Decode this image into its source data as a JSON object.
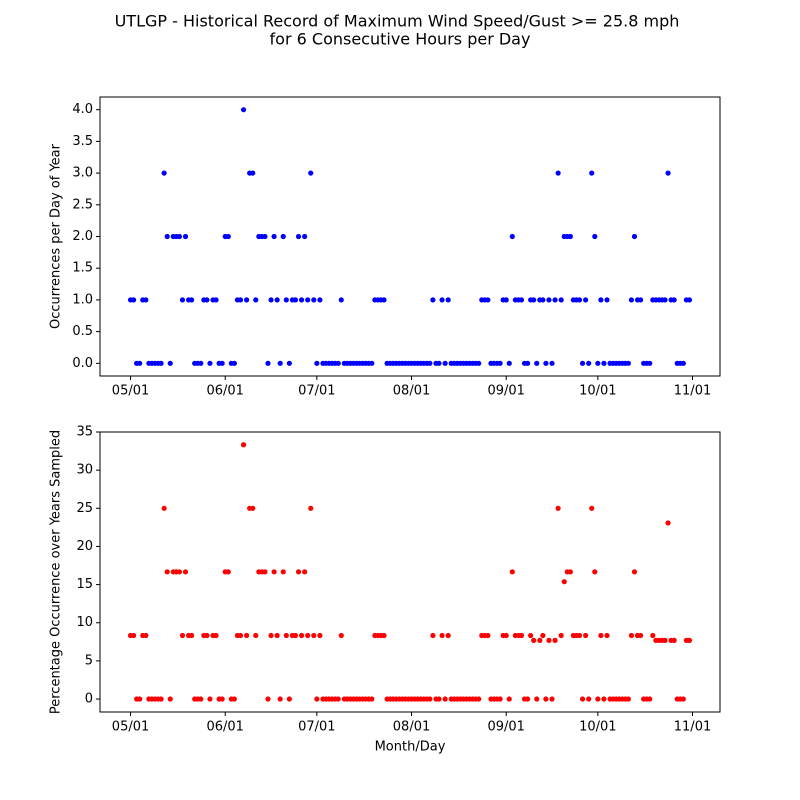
{
  "title": [
    "UTLGP - Historical Record of Maximum Wind Speed/Gust >= 25.8 mph",
    "for 6 Consecutive Hours per Day"
  ],
  "chart_data": [
    {
      "type": "scatter",
      "ylabel": "Occurrences per Day of Year",
      "x": [
        "05/01",
        "05/02",
        "05/03",
        "05/04",
        "05/05",
        "05/06",
        "05/07",
        "05/08",
        "05/09",
        "05/10",
        "05/11",
        "05/12",
        "05/13",
        "05/14",
        "05/15",
        "05/16",
        "05/17",
        "05/18",
        "05/19",
        "05/20",
        "05/21",
        "05/22",
        "05/23",
        "05/24",
        "05/25",
        "05/26",
        "05/27",
        "05/28",
        "05/29",
        "05/30",
        "05/31",
        "06/01",
        "06/02",
        "06/03",
        "06/04",
        "06/05",
        "06/06",
        "06/07",
        "06/08",
        "06/09",
        "06/10",
        "06/11",
        "06/12",
        "06/13",
        "06/14",
        "06/15",
        "06/16",
        "06/17",
        "06/18",
        "06/19",
        "06/20",
        "06/21",
        "06/22",
        "06/23",
        "06/24",
        "06/25",
        "06/26",
        "06/27",
        "06/28",
        "06/29",
        "06/30",
        "07/01",
        "07/02",
        "07/03",
        "07/04",
        "07/05",
        "07/06",
        "07/07",
        "07/08",
        "07/09",
        "07/10",
        "07/11",
        "07/12",
        "07/13",
        "07/14",
        "07/15",
        "07/16",
        "07/17",
        "07/18",
        "07/19",
        "07/20",
        "07/21",
        "07/22",
        "07/23",
        "07/24",
        "07/25",
        "07/26",
        "07/27",
        "07/28",
        "07/29",
        "07/30",
        "07/31",
        "08/01",
        "08/02",
        "08/03",
        "08/04",
        "08/05",
        "08/06",
        "08/07",
        "08/08",
        "08/09",
        "08/10",
        "08/11",
        "08/12",
        "08/13",
        "08/14",
        "08/15",
        "08/16",
        "08/17",
        "08/18",
        "08/19",
        "08/20",
        "08/21",
        "08/22",
        "08/23",
        "08/24",
        "08/25",
        "08/26",
        "08/27",
        "08/28",
        "08/29",
        "08/30",
        "08/31",
        "09/01",
        "09/02",
        "09/03",
        "09/04",
        "09/05",
        "09/06",
        "09/07",
        "09/08",
        "09/09",
        "09/10",
        "09/11",
        "09/12",
        "09/13",
        "09/14",
        "09/15",
        "09/16",
        "09/17",
        "09/18",
        "09/19",
        "09/20",
        "09/21",
        "09/22",
        "09/23",
        "09/24",
        "09/25",
        "09/26",
        "09/27",
        "09/28",
        "09/29",
        "09/30",
        "10/01",
        "10/02",
        "10/03",
        "10/04",
        "10/05",
        "10/06",
        "10/07",
        "10/08",
        "10/09",
        "10/10",
        "10/11",
        "10/12",
        "10/13",
        "10/14",
        "10/15",
        "10/16",
        "10/17",
        "10/18",
        "10/19",
        "10/20",
        "10/21",
        "10/22",
        "10/23",
        "10/24",
        "10/25",
        "10/26",
        "10/27",
        "10/28",
        "10/29",
        "10/30",
        "10/31"
      ],
      "series": [
        {
          "color": "#0000ff",
          "values": [
            1,
            1,
            0,
            0,
            1,
            1,
            0,
            0,
            0,
            0,
            0,
            3,
            2,
            0,
            2,
            2,
            2,
            1,
            2,
            1,
            1,
            0,
            0,
            0,
            1,
            1,
            0,
            1,
            1,
            0,
            0,
            2,
            2,
            0,
            0,
            1,
            1,
            4,
            1,
            3,
            3,
            1,
            2,
            2,
            2,
            0,
            1,
            2,
            1,
            0,
            2,
            1,
            0,
            1,
            1,
            2,
            1,
            2,
            1,
            3,
            1,
            0,
            1,
            0,
            0,
            0,
            0,
            0,
            0,
            1,
            0,
            0,
            0,
            0,
            0,
            0,
            0,
            0,
            0,
            0,
            1,
            1,
            1,
            1,
            0,
            0,
            0,
            0,
            0,
            0,
            0,
            0,
            0,
            0,
            0,
            0,
            0,
            0,
            0,
            1,
            0,
            0,
            1,
            0,
            1,
            0,
            0,
            0,
            0,
            0,
            0,
            0,
            0,
            0,
            0,
            1,
            1,
            1,
            0,
            0,
            0,
            0,
            1,
            1,
            0,
            2,
            1,
            1,
            1,
            0,
            0,
            1,
            1,
            0,
            1,
            1,
            0,
            1,
            0,
            1,
            3,
            1,
            2,
            2,
            2,
            1,
            1,
            1,
            0,
            1,
            0,
            3,
            2,
            0,
            1,
            0,
            1,
            0,
            0,
            0,
            0,
            0,
            0,
            0,
            1,
            2,
            1,
            1,
            0,
            0,
            0,
            1,
            1,
            1,
            1,
            1,
            3,
            1,
            1,
            0,
            0,
            0,
            1,
            1
          ]
        }
      ],
      "xlim": [
        "04/21",
        "11/10"
      ],
      "xticks": [
        "05/01",
        "06/01",
        "07/01",
        "08/01",
        "09/01",
        "10/01",
        "11/01"
      ],
      "ylim": [
        -0.2,
        4.2
      ],
      "yticks": [
        {
          "value": 0,
          "label": "0.0"
        },
        {
          "value": 0.5,
          "label": "0.5"
        },
        {
          "value": 1,
          "label": "1.0"
        },
        {
          "value": 1.5,
          "label": "1.5"
        },
        {
          "value": 2,
          "label": "2.0"
        },
        {
          "value": 2.5,
          "label": "2.5"
        },
        {
          "value": 3,
          "label": "3.0"
        },
        {
          "value": 3.5,
          "label": "3.5"
        },
        {
          "value": 4,
          "label": "4.0"
        }
      ]
    },
    {
      "type": "scatter",
      "xlabel": "Month/Day",
      "ylabel": "Percentage Occurrence over Years Sampled",
      "x": [
        "05/01",
        "05/02",
        "05/03",
        "05/04",
        "05/05",
        "05/06",
        "05/07",
        "05/08",
        "05/09",
        "05/10",
        "05/11",
        "05/12",
        "05/13",
        "05/14",
        "05/15",
        "05/16",
        "05/17",
        "05/18",
        "05/19",
        "05/20",
        "05/21",
        "05/22",
        "05/23",
        "05/24",
        "05/25",
        "05/26",
        "05/27",
        "05/28",
        "05/29",
        "05/30",
        "05/31",
        "06/01",
        "06/02",
        "06/03",
        "06/04",
        "06/05",
        "06/06",
        "06/07",
        "06/08",
        "06/09",
        "06/10",
        "06/11",
        "06/12",
        "06/13",
        "06/14",
        "06/15",
        "06/16",
        "06/17",
        "06/18",
        "06/19",
        "06/20",
        "06/21",
        "06/22",
        "06/23",
        "06/24",
        "06/25",
        "06/26",
        "06/27",
        "06/28",
        "06/29",
        "06/30",
        "07/01",
        "07/02",
        "07/03",
        "07/04",
        "07/05",
        "07/06",
        "07/07",
        "07/08",
        "07/09",
        "07/10",
        "07/11",
        "07/12",
        "07/13",
        "07/14",
        "07/15",
        "07/16",
        "07/17",
        "07/18",
        "07/19",
        "07/20",
        "07/21",
        "07/22",
        "07/23",
        "07/24",
        "07/25",
        "07/26",
        "07/27",
        "07/28",
        "07/29",
        "07/30",
        "07/31",
        "08/01",
        "08/02",
        "08/03",
        "08/04",
        "08/05",
        "08/06",
        "08/07",
        "08/08",
        "08/09",
        "08/10",
        "08/11",
        "08/12",
        "08/13",
        "08/14",
        "08/15",
        "08/16",
        "08/17",
        "08/18",
        "08/19",
        "08/20",
        "08/21",
        "08/22",
        "08/23",
        "08/24",
        "08/25",
        "08/26",
        "08/27",
        "08/28",
        "08/29",
        "08/30",
        "08/31",
        "09/01",
        "09/02",
        "09/03",
        "09/04",
        "09/05",
        "09/06",
        "09/07",
        "09/08",
        "09/09",
        "09/10",
        "09/11",
        "09/12",
        "09/13",
        "09/14",
        "09/15",
        "09/16",
        "09/17",
        "09/18",
        "09/19",
        "09/20",
        "09/21",
        "09/22",
        "09/23",
        "09/24",
        "09/25",
        "09/26",
        "09/27",
        "09/28",
        "09/29",
        "09/30",
        "10/01",
        "10/02",
        "10/03",
        "10/04",
        "10/05",
        "10/06",
        "10/07",
        "10/08",
        "10/09",
        "10/10",
        "10/11",
        "10/12",
        "10/13",
        "10/14",
        "10/15",
        "10/16",
        "10/17",
        "10/18",
        "10/19",
        "10/20",
        "10/21",
        "10/22",
        "10/23",
        "10/24",
        "10/25",
        "10/26",
        "10/27",
        "10/28",
        "10/29",
        "10/30",
        "10/31"
      ],
      "series": [
        {
          "color": "#ff0000",
          "values": [
            8.33,
            8.33,
            0,
            0,
            8.33,
            8.33,
            0,
            0,
            0,
            0,
            0,
            25,
            16.67,
            0,
            16.67,
            16.67,
            16.67,
            8.33,
            16.67,
            8.33,
            8.33,
            0,
            0,
            0,
            8.33,
            8.33,
            0,
            8.33,
            8.33,
            0,
            0,
            16.67,
            16.67,
            0,
            0,
            8.33,
            8.33,
            33.33,
            8.33,
            25,
            25,
            8.33,
            16.67,
            16.67,
            16.67,
            0,
            8.33,
            16.67,
            8.33,
            0,
            16.67,
            8.33,
            0,
            8.33,
            8.33,
            16.67,
            8.33,
            16.67,
            8.33,
            25,
            8.33,
            0,
            8.33,
            0,
            0,
            0,
            0,
            0,
            0,
            8.33,
            0,
            0,
            0,
            0,
            0,
            0,
            0,
            0,
            0,
            0,
            8.33,
            8.33,
            8.33,
            8.33,
            0,
            0,
            0,
            0,
            0,
            0,
            0,
            0,
            0,
            0,
            0,
            0,
            0,
            0,
            0,
            8.33,
            0,
            0,
            8.33,
            0,
            8.33,
            0,
            0,
            0,
            0,
            0,
            0,
            0,
            0,
            0,
            0,
            8.33,
            8.33,
            8.33,
            0,
            0,
            0,
            0,
            8.33,
            8.33,
            0,
            16.67,
            8.33,
            8.33,
            8.33,
            0,
            0,
            8.33,
            7.69,
            0,
            7.69,
            8.33,
            0,
            7.69,
            0,
            7.69,
            25,
            8.33,
            15.38,
            16.67,
            16.67,
            8.33,
            8.33,
            8.33,
            0,
            8.33,
            0,
            25,
            16.67,
            0,
            8.33,
            0,
            8.33,
            0,
            0,
            0,
            0,
            0,
            0,
            0,
            8.33,
            16.67,
            8.33,
            8.33,
            0,
            0,
            0,
            8.33,
            7.69,
            7.69,
            7.69,
            7.69,
            23.08,
            7.69,
            7.69,
            0,
            0,
            0,
            7.69,
            7.69
          ]
        }
      ],
      "xlim": [
        "04/21",
        "11/10"
      ],
      "xticks": [
        "05/01",
        "06/01",
        "07/01",
        "08/01",
        "09/01",
        "10/01",
        "11/01"
      ],
      "ylim": [
        -1.7,
        35
      ],
      "yticks": [
        0,
        5,
        10,
        15,
        20,
        25,
        30,
        35
      ]
    }
  ]
}
